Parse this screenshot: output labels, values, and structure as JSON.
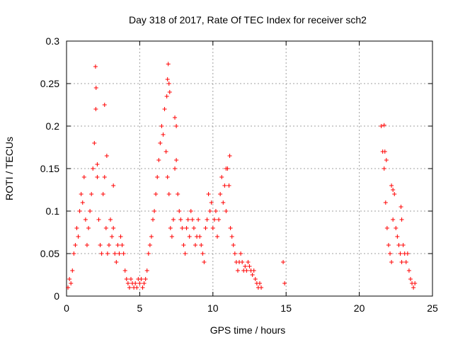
{
  "chart_data": {
    "type": "scatter",
    "title": "Day 318 of 2017, Rate Of TEC Index for receiver sch2",
    "xlabel": "GPS time / hours",
    "ylabel": "ROTI / TECUs",
    "xlim": [
      0,
      25
    ],
    "ylim": [
      0,
      0.3
    ],
    "xticks": [
      0,
      5,
      10,
      15,
      20,
      25
    ],
    "yticks": [
      0,
      0.05,
      0.1,
      0.15,
      0.2,
      0.25,
      0.3
    ],
    "xtick_labels": [
      "0",
      "5",
      "10",
      "15",
      "20",
      "25"
    ],
    "ytick_labels": [
      "0",
      "0.05",
      "0.1",
      "0.15",
      "0.2",
      "0.25",
      "0.3"
    ],
    "grid": true,
    "marker": "+",
    "marker_color": "#ff0000",
    "series": [
      {
        "x": [
          0.1,
          0.2,
          0.3,
          0.4,
          0.5,
          0.6,
          0.7,
          0.8,
          0.9,
          1.0,
          1.1,
          1.2,
          1.3,
          1.4,
          1.5,
          1.6,
          1.7,
          1.8,
          1.9,
          2.0,
          2.1,
          2.2,
          2.3,
          2.4,
          2.5,
          2.6,
          2.7,
          2.8,
          2.9,
          3.0,
          3.1,
          3.2,
          3.3,
          3.4,
          3.5,
          3.6,
          3.7,
          3.8,
          3.9,
          4.0,
          4.1,
          4.2,
          4.3,
          4.4,
          4.5,
          4.6,
          4.7,
          4.8,
          4.9,
          5.0,
          5.1,
          5.2,
          5.3,
          5.4,
          5.5,
          5.6,
          5.7,
          5.8,
          5.9,
          6.0,
          6.1,
          6.2,
          6.3,
          6.4,
          6.5,
          6.6,
          6.7,
          6.8,
          6.9,
          7.0,
          7.1,
          7.2,
          7.3,
          7.4,
          7.5,
          7.6,
          7.7,
          7.8,
          7.9,
          8.0,
          8.1,
          8.2,
          8.3,
          8.4,
          8.5,
          8.6,
          8.7,
          8.8,
          8.9,
          9.0,
          9.1,
          9.2,
          9.3,
          9.4,
          9.5,
          9.6,
          9.7,
          9.8,
          9.9,
          10.0,
          10.1,
          10.2,
          10.3,
          10.4,
          10.5,
          10.6,
          10.7,
          10.8,
          10.9,
          11.0,
          11.1,
          11.2,
          11.3,
          11.4,
          11.5,
          11.6,
          11.7,
          11.8,
          11.9,
          12.0,
          12.1,
          12.2,
          12.3,
          12.4,
          12.5,
          12.6,
          12.7,
          12.8,
          12.9,
          13.0,
          13.1,
          13.2,
          13.3,
          14.8,
          14.9,
          21.5,
          21.6,
          21.7,
          21.8,
          21.9,
          22.0,
          22.1,
          22.2,
          22.3,
          22.4,
          22.5,
          22.6,
          22.7,
          22.8,
          22.9,
          23.0,
          23.1,
          23.2,
          23.3,
          23.4,
          23.5,
          23.6,
          23.7,
          23.8,
          1.98,
          2.02,
          2.1,
          2.6,
          2.75,
          3.2,
          6.85,
          6.9,
          6.95,
          7.0,
          7.05,
          7.4,
          7.5,
          10.9,
          11.15,
          21.7,
          21.75,
          21.85,
          22.2,
          22.3,
          22.85,
          22.9
        ],
        "y": [
          0.01,
          0.02,
          0.015,
          0.03,
          0.05,
          0.06,
          0.08,
          0.07,
          0.1,
          0.12,
          0.11,
          0.14,
          0.09,
          0.06,
          0.08,
          0.1,
          0.12,
          0.15,
          0.18,
          0.22,
          0.14,
          0.09,
          0.06,
          0.05,
          0.12,
          0.14,
          0.08,
          0.05,
          0.06,
          0.09,
          0.07,
          0.08,
          0.05,
          0.04,
          0.06,
          0.05,
          0.07,
          0.06,
          0.05,
          0.03,
          0.02,
          0.015,
          0.01,
          0.02,
          0.015,
          0.01,
          0.015,
          0.01,
          0.02,
          0.015,
          0.02,
          0.01,
          0.015,
          0.02,
          0.03,
          0.05,
          0.06,
          0.07,
          0.09,
          0.1,
          0.12,
          0.14,
          0.16,
          0.18,
          0.2,
          0.19,
          0.22,
          0.17,
          0.14,
          0.12,
          0.08,
          0.07,
          0.09,
          0.15,
          0.16,
          0.12,
          0.1,
          0.09,
          0.08,
          0.06,
          0.05,
          0.08,
          0.09,
          0.07,
          0.1,
          0.09,
          0.08,
          0.06,
          0.07,
          0.09,
          0.07,
          0.06,
          0.05,
          0.04,
          0.08,
          0.09,
          0.12,
          0.1,
          0.11,
          0.08,
          0.09,
          0.1,
          0.07,
          0.09,
          0.12,
          0.14,
          0.11,
          0.13,
          0.1,
          0.15,
          0.13,
          0.08,
          0.07,
          0.06,
          0.05,
          0.04,
          0.03,
          0.04,
          0.05,
          0.04,
          0.03,
          0.035,
          0.03,
          0.04,
          0.035,
          0.03,
          0.025,
          0.03,
          0.02,
          0.015,
          0.01,
          0.015,
          0.01,
          0.04,
          0.015,
          0.2,
          0.17,
          0.15,
          0.11,
          0.08,
          0.06,
          0.05,
          0.04,
          0.09,
          0.12,
          0.08,
          0.07,
          0.06,
          0.05,
          0.04,
          0.06,
          0.05,
          0.04,
          0.05,
          0.03,
          0.02,
          0.015,
          0.01,
          0.015,
          0.27,
          0.245,
          0.155,
          0.225,
          0.165,
          0.13,
          0.235,
          0.255,
          0.273,
          0.25,
          0.24,
          0.21,
          0.2,
          0.15,
          0.165,
          0.201,
          0.17,
          0.16,
          0.13,
          0.125,
          0.105,
          0.09
        ]
      }
    ]
  }
}
